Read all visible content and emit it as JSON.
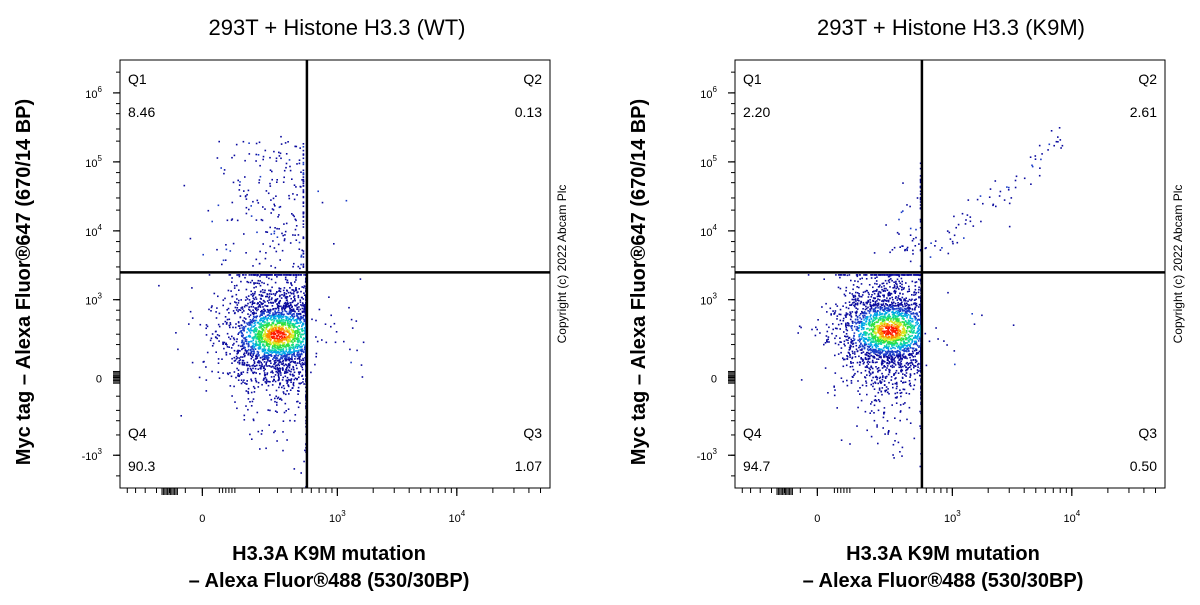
{
  "chart_data": [
    {
      "type": "scatter",
      "subtype": "flow-cytometry-density-dot-plot",
      "title": "293T + Histone H3.3 (WT)",
      "xlabel": [
        "H3.3A K9M mutation",
        "– Alexa Fluor®488 (530/30BP)"
      ],
      "ylabel": "Myc tag – Alexa Fluor®647 (670/14 BP)",
      "x_scale": "biexponential",
      "y_scale": "biexponential",
      "x_ticks": [
        {
          "value": 0,
          "label": "0"
        },
        {
          "value": 1000,
          "label": "10",
          "sup": "3"
        },
        {
          "value": 10000,
          "label": "10",
          "sup": "4"
        }
      ],
      "y_ticks": [
        {
          "value": -1000,
          "label": "-10",
          "sup": "3"
        },
        {
          "value": 0,
          "label": "0"
        },
        {
          "value": 1000,
          "label": "10",
          "sup": "3"
        },
        {
          "value": 10000,
          "label": "10",
          "sup": "4"
        },
        {
          "value": 100000,
          "label": "10",
          "sup": "5"
        },
        {
          "value": 1000000,
          "label": "10",
          "sup": "6"
        }
      ],
      "gate": {
        "x": 550,
        "y": 2500
      },
      "quadrants": [
        {
          "name": "Q1",
          "percent": "8.46",
          "corner": "top-left"
        },
        {
          "name": "Q2",
          "percent": "0.13",
          "corner": "top-right"
        },
        {
          "name": "Q3",
          "percent": "1.07",
          "corner": "bottom-right"
        },
        {
          "name": "Q4",
          "percent": "90.3",
          "corner": "bottom-left"
        }
      ],
      "population": {
        "center": [
          300,
          300
        ],
        "color_scale": [
          "#0000aa",
          "#00b4ff",
          "#00e060",
          "#ffe000",
          "#ff0000"
        ]
      }
    },
    {
      "type": "scatter",
      "subtype": "flow-cytometry-density-dot-plot",
      "title": "293T + Histone H3.3 (K9M)",
      "xlabel": [
        "H3.3A K9M mutation",
        "– Alexa Fluor®488 (530/30BP)"
      ],
      "ylabel": "Myc tag – Alexa Fluor®647 (670/14 BP)",
      "x_scale": "biexponential",
      "y_scale": "biexponential",
      "x_ticks": [
        {
          "value": 0,
          "label": "0"
        },
        {
          "value": 1000,
          "label": "10",
          "sup": "3"
        },
        {
          "value": 10000,
          "label": "10",
          "sup": "4"
        }
      ],
      "y_ticks": [
        {
          "value": -1000,
          "label": "-10",
          "sup": "3"
        },
        {
          "value": 0,
          "label": "0"
        },
        {
          "value": 1000,
          "label": "10",
          "sup": "3"
        },
        {
          "value": 10000,
          "label": "10",
          "sup": "4"
        },
        {
          "value": 100000,
          "label": "10",
          "sup": "5"
        },
        {
          "value": 1000000,
          "label": "10",
          "sup": "6"
        }
      ],
      "gate": {
        "x": 550,
        "y": 2500
      },
      "quadrants": [
        {
          "name": "Q1",
          "percent": "2.20",
          "corner": "top-left"
        },
        {
          "name": "Q2",
          "percent": "2.61",
          "corner": "top-right"
        },
        {
          "name": "Q3",
          "percent": "0.50",
          "corner": "bottom-right"
        },
        {
          "name": "Q4",
          "percent": "94.7",
          "corner": "bottom-left"
        }
      ],
      "population": {
        "center": [
          280,
          350
        ],
        "color_scale": [
          "#0000aa",
          "#00b4ff",
          "#00e060",
          "#ffe000",
          "#ff0000"
        ]
      }
    }
  ],
  "copyright": "Copyright (c) 2022 Abcam Plc"
}
